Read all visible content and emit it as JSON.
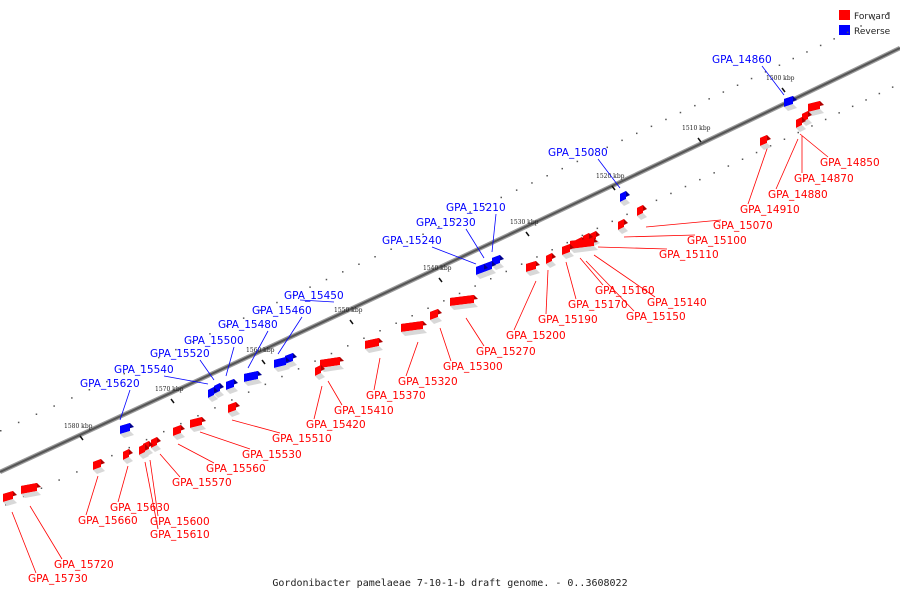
{
  "caption": "Gordonibacter pamelaeae 7-10-1-b draft genome. - 0..3608022",
  "legend": {
    "forward_label": "Forward",
    "reverse_label": "Reverse",
    "forward_color": "#ff0000",
    "reverse_color": "#0000ff"
  },
  "ticks": [
    "1500 kbp",
    "1510 kbp",
    "1520 kbp",
    "1530 kbp",
    "1540 kbp",
    "1550 kbp",
    "1560 kbp",
    "1570 kbp",
    "1580 kbp"
  ],
  "genes": [
    {
      "name": "GPA_14850",
      "strand": "forward"
    },
    {
      "name": "GPA_14860",
      "strand": "reverse"
    },
    {
      "name": "GPA_14870",
      "strand": "forward"
    },
    {
      "name": "GPA_14880",
      "strand": "forward"
    },
    {
      "name": "GPA_14910",
      "strand": "forward"
    },
    {
      "name": "GPA_15070",
      "strand": "forward"
    },
    {
      "name": "GPA_15080",
      "strand": "reverse"
    },
    {
      "name": "GPA_15100",
      "strand": "forward"
    },
    {
      "name": "GPA_15110",
      "strand": "forward"
    },
    {
      "name": "GPA_15140",
      "strand": "forward"
    },
    {
      "name": "GPA_15150",
      "strand": "forward"
    },
    {
      "name": "GPA_15160",
      "strand": "forward"
    },
    {
      "name": "GPA_15170",
      "strand": "forward"
    },
    {
      "name": "GPA_15190",
      "strand": "forward"
    },
    {
      "name": "GPA_15200",
      "strand": "forward"
    },
    {
      "name": "GPA_15210",
      "strand": "reverse"
    },
    {
      "name": "GPA_15230",
      "strand": "reverse"
    },
    {
      "name": "GPA_15240",
      "strand": "reverse"
    },
    {
      "name": "GPA_15270",
      "strand": "forward"
    },
    {
      "name": "GPA_15300",
      "strand": "forward"
    },
    {
      "name": "GPA_15320",
      "strand": "forward"
    },
    {
      "name": "GPA_15370",
      "strand": "forward"
    },
    {
      "name": "GPA_15410",
      "strand": "forward"
    },
    {
      "name": "GPA_15420",
      "strand": "forward"
    },
    {
      "name": "GPA_15450",
      "strand": "reverse"
    },
    {
      "name": "GPA_15460",
      "strand": "reverse"
    },
    {
      "name": "GPA_15480",
      "strand": "reverse"
    },
    {
      "name": "GPA_15500",
      "strand": "reverse"
    },
    {
      "name": "GPA_15510",
      "strand": "forward"
    },
    {
      "name": "GPA_15520",
      "strand": "reverse"
    },
    {
      "name": "GPA_15530",
      "strand": "forward"
    },
    {
      "name": "GPA_15540",
      "strand": "reverse"
    },
    {
      "name": "GPA_15560",
      "strand": "forward"
    },
    {
      "name": "GPA_15570",
      "strand": "forward"
    },
    {
      "name": "GPA_15600",
      "strand": "forward"
    },
    {
      "name": "GPA_15610",
      "strand": "forward"
    },
    {
      "name": "GPA_15620",
      "strand": "reverse"
    },
    {
      "name": "GPA_15630",
      "strand": "forward"
    },
    {
      "name": "GPA_15660",
      "strand": "forward"
    },
    {
      "name": "GPA_15720",
      "strand": "forward"
    },
    {
      "name": "GPA_15730",
      "strand": "forward"
    }
  ]
}
